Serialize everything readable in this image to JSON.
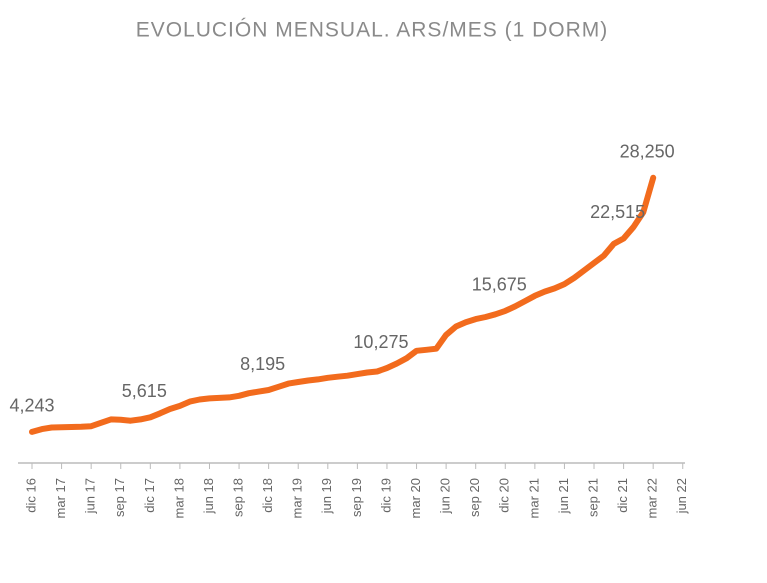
{
  "chart_data": {
    "type": "line",
    "title": "EVOLUCIÓN MENSUAL. ARS/MES (1 DORM)",
    "color": "#f26b1d",
    "categories": [
      "dic 16",
      null,
      null,
      "mar 17",
      null,
      null,
      "jun 17",
      null,
      null,
      "sep 17",
      null,
      null,
      "dic 17",
      null,
      null,
      "mar 18",
      null,
      null,
      "jun 18",
      null,
      null,
      "sep 18",
      null,
      null,
      "dic 18",
      null,
      null,
      "mar 19",
      null,
      null,
      "jun 19",
      null,
      null,
      "sep 19",
      null,
      null,
      "dic 19",
      null,
      null,
      "mar 20",
      null,
      null,
      "jun 20",
      null,
      null,
      "sep 20",
      null,
      null,
      "dic 20",
      null,
      null,
      "mar 21",
      null,
      null,
      "jun 21",
      null,
      null,
      "sep 21",
      null,
      null,
      "dic 21",
      null,
      null,
      "mar 22",
      null,
      null,
      "jun 22"
    ],
    "values": [
      4243,
      4500,
      4650,
      4680,
      4700,
      4720,
      4780,
      5100,
      5420,
      5380,
      5300,
      5420,
      5615,
      6000,
      6400,
      6700,
      7100,
      7300,
      7400,
      7450,
      7500,
      7650,
      7900,
      8050,
      8195,
      8500,
      8800,
      8950,
      9100,
      9200,
      9350,
      9450,
      9550,
      9700,
      9850,
      9950,
      10275,
      10700,
      11200,
      11900,
      12000,
      12100,
      13400,
      14200,
      14600,
      14900,
      15100,
      15350,
      15675,
      16100,
      16600,
      17100,
      17500,
      17800,
      18200,
      18800,
      19500,
      20200,
      20900,
      22000,
      22515,
      23600,
      25000,
      28250,
      null,
      null,
      null
    ],
    "value_labels": [
      "4,243",
      null,
      null,
      null,
      null,
      null,
      null,
      null,
      null,
      null,
      null,
      null,
      "5,615",
      null,
      null,
      null,
      null,
      null,
      null,
      null,
      null,
      null,
      null,
      null,
      "8,195",
      null,
      null,
      null,
      null,
      null,
      null,
      null,
      null,
      null,
      null,
      null,
      "10,275",
      null,
      null,
      null,
      null,
      null,
      null,
      null,
      null,
      null,
      null,
      null,
      "15,675",
      null,
      null,
      null,
      null,
      null,
      null,
      null,
      null,
      null,
      null,
      null,
      "22,515",
      null,
      null,
      "28,250",
      null,
      null,
      null
    ],
    "ylim": [
      1300,
      35600
    ]
  }
}
